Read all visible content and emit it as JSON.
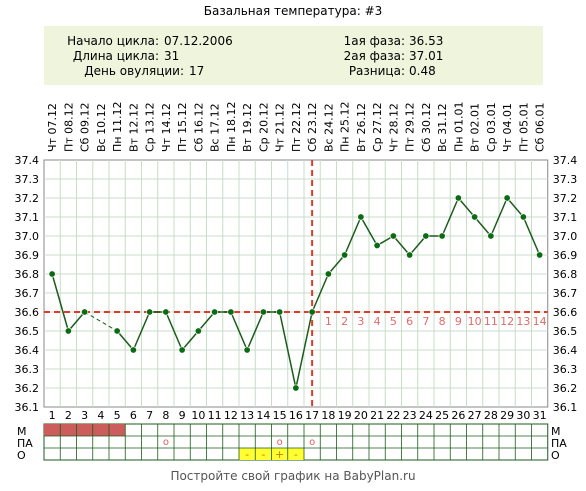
{
  "title": "Базальная температура: #3",
  "footer": "Постройте свой график на BabyPlan.ru",
  "info": {
    "left": [
      {
        "label": "Начало цикла:",
        "value": "07.12.2006"
      },
      {
        "label": "Длина цикла:",
        "value": "31"
      },
      {
        "label": "День овуляции:",
        "value": "17"
      }
    ],
    "right": [
      {
        "label": "1ая фаза:",
        "value": "36.53"
      },
      {
        "label": "2ая фаза:",
        "value": "37.01"
      },
      {
        "label": "Разница:",
        "value": "0.48"
      }
    ]
  },
  "rows": {
    "m_label": "М",
    "pa_label": "ПА",
    "o_label": "О"
  },
  "colors": {
    "line": "#1a5c1a",
    "point": "#0b6b12",
    "coverline": "#e03a2a",
    "phase_numbers": "#e06a6a",
    "info_bg": "#eef5dc",
    "grid": "#c8dcc8",
    "m_fill": "#cd5c5c",
    "o_fill": "#ffff33"
  },
  "chart_data": {
    "type": "line",
    "title": "Базальная температура: #3",
    "x": [
      1,
      2,
      3,
      4,
      5,
      6,
      7,
      8,
      9,
      10,
      11,
      12,
      13,
      14,
      15,
      16,
      17,
      18,
      19,
      20,
      21,
      22,
      23,
      24,
      25,
      26,
      27,
      28,
      29,
      30,
      31
    ],
    "dates": [
      "Чт 07.12",
      "Пт 08.12",
      "Сб 09.12",
      "Вс 10.12",
      "Пн 11.12",
      "Вт 12.12",
      "Ср 13.12",
      "Чт 14.12",
      "Пт 15.12",
      "Сб 16.12",
      "Вс 17.12",
      "Пн 18.12",
      "Вт 19.12",
      "Ср 20.12",
      "Чт 21.12",
      "Пт 22.12",
      "Сб 23.12",
      "Вс 24.12",
      "Пн 25.12",
      "Вт 26.12",
      "Ср 27.12",
      "Чт 28.12",
      "Пт 29.12",
      "Сб 30.12",
      "Вс 31.12",
      "Пн 01.01",
      "Вт 02.01",
      "Ср 03.01",
      "Чт 04.01",
      "Пт 05.01",
      "Сб 06.01"
    ],
    "values": [
      36.8,
      36.5,
      36.6,
      null,
      36.5,
      36.4,
      36.6,
      36.6,
      36.4,
      36.5,
      36.6,
      36.6,
      36.4,
      36.6,
      36.6,
      36.2,
      36.6,
      36.8,
      36.9,
      37.1,
      36.95,
      37.0,
      36.9,
      37.0,
      37.0,
      37.2,
      37.1,
      37.0,
      37.2,
      37.1,
      36.9
    ],
    "ylim": [
      36.1,
      37.4
    ],
    "yticks": [
      "37.4",
      "37.3",
      "37.2",
      "37.1",
      "37.0",
      "36.9",
      "36.8",
      "36.7",
      "36.6",
      "36.5",
      "36.4",
      "36.3",
      "36.2",
      "36.1"
    ],
    "coverline": 36.6,
    "ovulation_day": 17,
    "phase2_labels": [
      "1",
      "2",
      "3",
      "4",
      "5",
      "6",
      "7",
      "8",
      "9",
      "10",
      "11",
      "12",
      "13",
      "14"
    ],
    "m_days": [
      1,
      2,
      3,
      4,
      5
    ],
    "pa_marks": [
      {
        "day": 8,
        "symbol": "o"
      },
      {
        "day": 15,
        "symbol": "o"
      },
      {
        "day": 17,
        "symbol": "o"
      }
    ],
    "o_marks": [
      {
        "day": 13,
        "symbol": "-"
      },
      {
        "day": 14,
        "symbol": "-"
      },
      {
        "day": 15,
        "symbol": "+"
      },
      {
        "day": 16,
        "symbol": "-"
      }
    ]
  }
}
